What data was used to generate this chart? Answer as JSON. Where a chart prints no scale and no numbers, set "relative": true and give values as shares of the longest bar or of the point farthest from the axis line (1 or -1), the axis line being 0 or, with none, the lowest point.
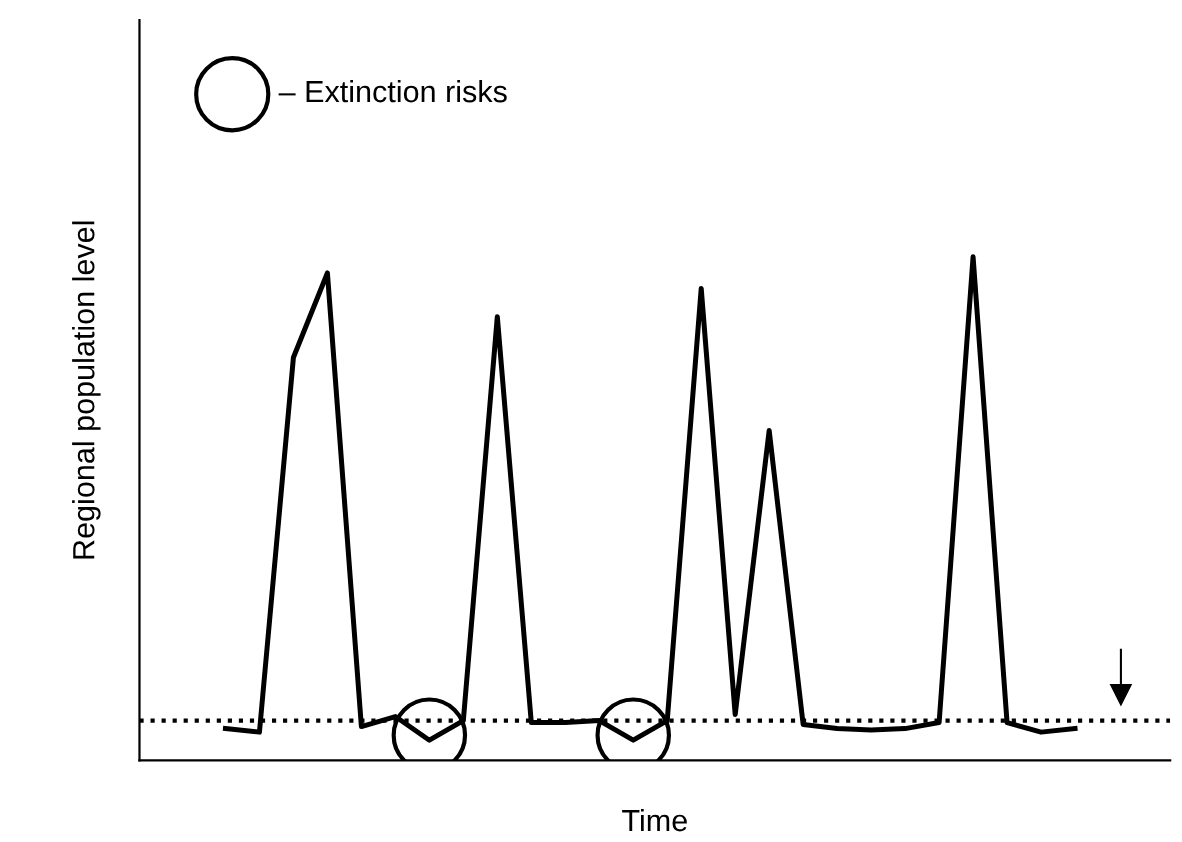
{
  "chart_data": {
    "type": "line",
    "relative": true,
    "xlabel": "Time",
    "ylabel": "Regional population level",
    "categories": [
      null,
      null,
      null,
      null,
      null,
      null,
      null,
      null,
      null,
      null,
      null,
      null,
      null,
      null,
      null,
      null,
      null,
      null,
      null,
      null,
      null,
      null,
      null,
      null,
      null,
      null
    ],
    "series": [
      {
        "color": "#000000",
        "values": [
          0.063,
          0.056,
          0.8,
          0.968,
          0.067,
          0.087,
          0.04,
          0.079,
          0.881,
          0.075,
          0.075,
          0.079,
          0.04,
          0.079,
          0.937,
          0.091,
          0.655,
          0.071,
          0.063,
          0.06,
          0.063,
          0.075,
          1,
          0.075,
          0.056,
          0.063
        ]
      }
    ],
    "ref_lines": [
      {
        "axis": "y",
        "value": 0.079,
        "line_style": "dotted",
        "color": "#000000"
      }
    ],
    "annotations": [
      "– Extinction risks"
    ],
    "grid": false
  }
}
